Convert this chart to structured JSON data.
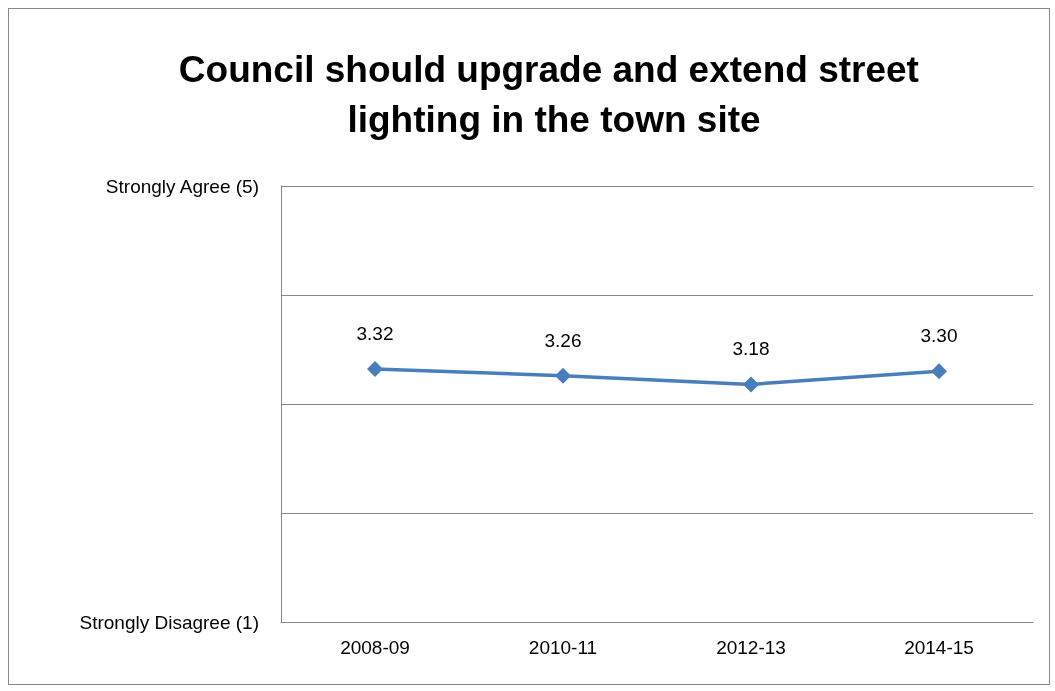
{
  "chart_data": {
    "type": "line",
    "title": "Council should upgrade and extend street lighting in the town site",
    "categories": [
      "2008-09",
      "2010-11",
      "2012-13",
      "2014-15"
    ],
    "series": [
      {
        "color": "#4a7ebb",
        "values": [
          3.32,
          3.26,
          3.18,
          3.3
        ],
        "value_labels": [
          "3.32",
          "3.26",
          "3.18",
          "3.30"
        ]
      }
    ],
    "ylim": [
      1,
      5
    ],
    "yticks": [
      {
        "value": 1,
        "label": "Strongly Disagree (1)"
      },
      {
        "value": 2,
        "label": null
      },
      {
        "value": 3,
        "label": null
      },
      {
        "value": 4,
        "label": null
      },
      {
        "value": 5,
        "label": "Strongly Agree (5)"
      }
    ],
    "grid": "y",
    "marker": "diamond",
    "line_style": "solid"
  }
}
